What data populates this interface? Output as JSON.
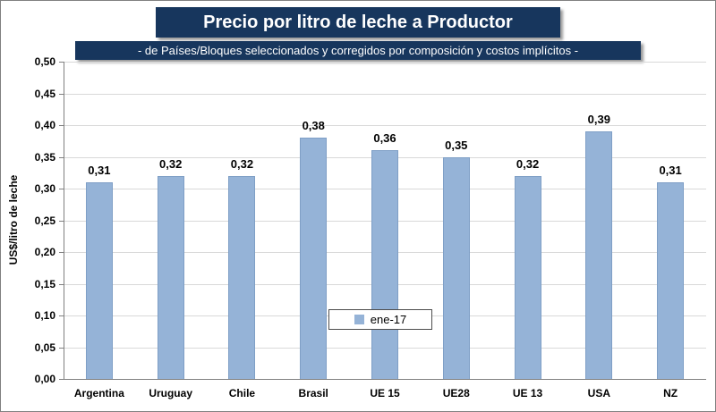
{
  "title": "Precio por litro de leche a Productor",
  "subtitle": "- de Países/Bloques seleccionados y corregidos por composición y costos  implícitos -",
  "legend": {
    "label": "ene-17"
  },
  "colors": {
    "title_bg": "#17365D",
    "title_text": "#FFFFFF",
    "bar": "#95B3D7",
    "grid": "#D9D9D9",
    "axis": "#808080"
  },
  "chart_data": {
    "type": "bar",
    "title": "Precio por litro de leche a Productor",
    "subtitle": "- de Países/Bloques seleccionados y corregidos por composición y costos  implícitos -",
    "categories": [
      "Argentina",
      "Uruguay",
      "Chile",
      "Brasil",
      "UE 15",
      "UE28",
      "UE 13",
      "USA",
      "NZ"
    ],
    "series": [
      {
        "name": "ene-17",
        "values": [
          0.31,
          0.32,
          0.32,
          0.38,
          0.36,
          0.35,
          0.32,
          0.39,
          0.31
        ]
      }
    ],
    "value_labels": [
      "0,31",
      "0,32",
      "0,32",
      "0,38",
      "0,36",
      "0,35",
      "0,32",
      "0,39",
      "0,31"
    ],
    "xlabel": "",
    "ylabel": "US$/litro de leche",
    "ylim": [
      0,
      0.5
    ],
    "ytick_step": 0.05,
    "ytick_labels": [
      "0,00",
      "0,05",
      "0,10",
      "0,15",
      "0,20",
      "0,25",
      "0,30",
      "0,35",
      "0,40",
      "0,45",
      "0,50"
    ],
    "grid": true,
    "legend_position": "inside-bottom-center",
    "bar_color": "#95B3D7"
  }
}
